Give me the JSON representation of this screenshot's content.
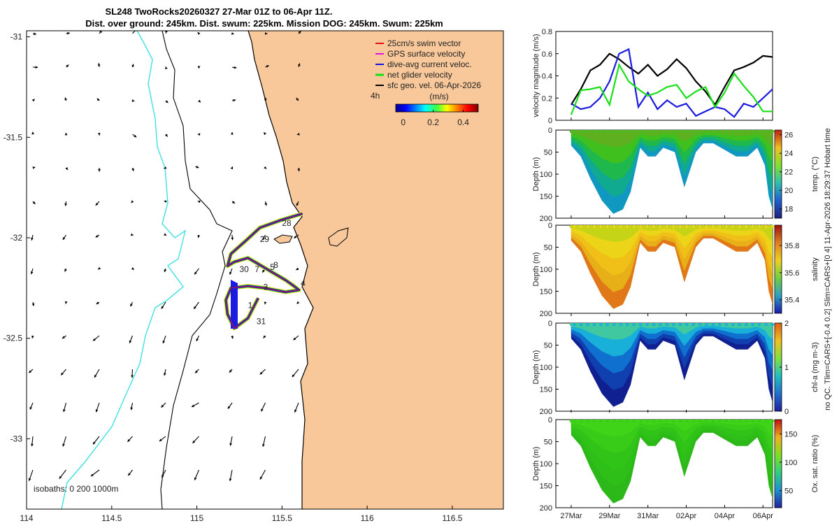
{
  "header": {
    "title_line1": "SL248 TwoRocks20260327 27-Mar 01Z to 06-Apr 11Z.",
    "title_line2": "Dist. over ground: 245km. Dist. swum: 225km. Mission DOG: 245km. Swum: 225km"
  },
  "right_margin_text": "no QC. Tlim=CARS+[-0.4 0.2] Slim=CARS+[0 4] 11-Apr-2026 18:29:37 Hobart time",
  "colors": {
    "land": "#f8c89a",
    "coast": "#000000",
    "isobath_200": "#000000",
    "isobath_1000": "#3fe0e0",
    "green": "#18e018",
    "blue": "#1a1ae0",
    "black": "#000000"
  },
  "chart_data": [
    {
      "id": "map",
      "type": "scatter",
      "title": "glider track map",
      "xlabel": "",
      "ylabel": "",
      "xlim": [
        114,
        116.8
      ],
      "ylim": [
        -33.35,
        -30.97
      ],
      "xticks": [
        114,
        114.5,
        115,
        115.5,
        116,
        116.5
      ],
      "xtick_labels": [
        "114",
        "114.5",
        "115",
        "115.5",
        "116",
        "116.5"
      ],
      "yticks": [
        -31,
        -31.5,
        -32,
        -32.5,
        -33
      ],
      "ytick_labels": [
        "-31",
        "-31.5",
        "-32",
        "-32.5",
        "-33"
      ],
      "legend": {
        "placement": "top-right",
        "items": [
          {
            "label": "25cm/s swim vector",
            "color": "#e01010"
          },
          {
            "label": "GPS surface velocity",
            "color": "#e010e0"
          },
          {
            "label": "dive-avg current veloc.",
            "color": "#1010e0"
          },
          {
            "label": "net glider velocity",
            "color": "#10e010"
          },
          {
            "label": "sfc geo. vel. 06-Apr-2026",
            "color": "#000000"
          }
        ]
      },
      "scale_label": "4h",
      "colorbar": {
        "label": "(m/s)",
        "ticks": [
          "0",
          "0.2",
          "0.4"
        ],
        "range": [
          -0.05,
          0.5
        ]
      },
      "isobath_text": "isobaths: 0  200  1000m",
      "day_labels": [
        {
          "text": "28",
          "lon": 115.5,
          "lat": -31.94
        },
        {
          "text": "29",
          "lon": 115.37,
          "lat": -32.02
        },
        {
          "text": "30",
          "lon": 115.25,
          "lat": -32.17
        },
        {
          "text": "7",
          "lon": 115.34,
          "lat": -32.17
        },
        {
          "text": "5",
          "lon": 115.43,
          "lat": -32.16
        },
        {
          "text": "8",
          "lon": 115.45,
          "lat": -32.15
        },
        {
          "text": "3",
          "lon": 115.39,
          "lat": -32.26
        },
        {
          "text": "4",
          "lon": 115.61,
          "lat": -32.24
        },
        {
          "text": "1",
          "lon": 115.3,
          "lat": -32.35
        },
        {
          "text": "31",
          "lon": 115.35,
          "lat": -32.43
        }
      ],
      "track": {
        "lon": [
          115.62,
          115.5,
          115.37,
          115.28,
          115.2,
          115.18,
          115.22,
          115.3,
          115.36,
          115.44,
          115.52,
          115.57,
          115.6,
          115.52,
          115.4,
          115.3,
          115.2,
          115.17,
          115.18,
          115.22,
          115.3,
          115.36
        ],
        "lat": [
          -31.88,
          -31.91,
          -31.95,
          -32.02,
          -32.08,
          -32.14,
          -32.12,
          -32.1,
          -32.13,
          -32.17,
          -32.21,
          -32.24,
          -32.26,
          -32.27,
          -32.25,
          -32.24,
          -32.25,
          -32.31,
          -32.38,
          -32.45,
          -32.4,
          -32.3
        ]
      },
      "vectors_u": [
        0.15,
        -0.03,
        -0.04,
        -0.02
      ],
      "vectors_v": [
        0.05,
        -0.25,
        -0.35,
        -0.2
      ]
    },
    {
      "id": "velocity",
      "type": "line",
      "ylabel": "velocity magnitude (m/s)",
      "ylim": [
        0,
        0.8
      ],
      "yticks": [
        "0",
        "0.2",
        "0.4",
        "0.6",
        "0.8"
      ],
      "xlim": [
        26.2,
        37.5
      ],
      "x": [
        27,
        27.5,
        28,
        28.5,
        29,
        29.5,
        30,
        30.5,
        31,
        31.5,
        32,
        32.5,
        33,
        33.5,
        34,
        34.5,
        35,
        35.5,
        36,
        36.5,
        37,
        37.5
      ],
      "series": [
        {
          "name": "black",
          "color": "#000000",
          "values": [
            0.14,
            0.28,
            0.45,
            0.5,
            0.6,
            0.55,
            0.48,
            0.42,
            0.5,
            0.4,
            0.46,
            0.55,
            0.47,
            0.35,
            0.26,
            0.14,
            0.3,
            0.45,
            0.48,
            0.52,
            0.58,
            0.57
          ]
        },
        {
          "name": "blue",
          "color": "#1a1ae0",
          "values": [
            0.15,
            0.1,
            0.12,
            0.2,
            0.35,
            0.6,
            0.64,
            0.12,
            0.25,
            0.1,
            0.18,
            0.12,
            0.15,
            0.04,
            0.08,
            0.12,
            0.1,
            0.03,
            0.15,
            0.12,
            0.2,
            0.28
          ]
        },
        {
          "name": "green",
          "color": "#18e018",
          "values": [
            0.05,
            0.27,
            0.28,
            0.3,
            0.14,
            0.5,
            0.35,
            0.28,
            0.22,
            0.25,
            0.3,
            0.32,
            0.2,
            0.26,
            0.3,
            0.12,
            0.25,
            0.42,
            0.31,
            0.21,
            0.08,
            0.08
          ]
        }
      ]
    },
    {
      "id": "temp",
      "type": "heatmap",
      "ylabel": "Depth (m)",
      "clabel": "temp. (°C)",
      "yticks": [
        "0",
        "50",
        "100",
        "150",
        "200"
      ],
      "cticks": [
        "18",
        "20",
        "22",
        "24",
        "26"
      ],
      "crange": [
        17,
        26.5
      ],
      "colors": [
        "#5fb020",
        "#3fc01e",
        "#1fb84c",
        "#10aa90",
        "#1098c0"
      ],
      "levels": [
        21.5,
        22,
        21.2,
        20.5,
        19.5
      ]
    },
    {
      "id": "salinity",
      "type": "heatmap",
      "ylabel": "Depth (m)",
      "clabel": "salinity",
      "yticks": [
        "0",
        "50",
        "100",
        "150",
        "200"
      ],
      "cticks": [
        "35.4",
        "35.6",
        "35.8"
      ],
      "crange": [
        35.3,
        35.95
      ],
      "colors": [
        "#c6d418",
        "#ecd418",
        "#f0c018",
        "#e8b018",
        "#e07818"
      ],
      "levels": [
        35.65,
        35.7,
        35.72,
        35.75,
        35.8
      ]
    },
    {
      "id": "chla",
      "type": "heatmap",
      "ylabel": "Depth (m)",
      "clabel": "chl-a (mg m-3)",
      "yticks": [
        "0",
        "50",
        "100",
        "150",
        "200"
      ],
      "cticks": [
        "0",
        "1",
        "2"
      ],
      "crange": [
        0,
        2
      ],
      "colors": [
        "#40c8a0",
        "#18b0d8",
        "#1070d0",
        "#1040b0",
        "#102090"
      ],
      "levels": [
        0.9,
        0.7,
        0.5,
        0.35,
        0.2
      ]
    },
    {
      "id": "oxygen",
      "type": "heatmap",
      "ylabel": "Depth (m)",
      "clabel": "Ox. sat. ratio (%)",
      "yticks": [
        "0",
        "50",
        "100",
        "150",
        "200"
      ],
      "cticks": [
        "50",
        "100",
        "150"
      ],
      "crange": [
        20,
        175
      ],
      "colors": [
        "#40d418",
        "#38cc18",
        "#30c418",
        "#2ec018",
        "#2cb818"
      ],
      "levels": [
        105,
        104,
        102,
        100,
        98
      ]
    }
  ],
  "time_axis": {
    "ticks": [
      27,
      29,
      31,
      33,
      35,
      37
    ],
    "labels": [
      "27Mar",
      "29Mar",
      "31Mar",
      "02Apr",
      "04Apr",
      "06Apr"
    ]
  },
  "section_profile": {
    "x": [
      27,
      27.5,
      28,
      28.6,
      29.2,
      29.7,
      30.1,
      30.6,
      31,
      31.4,
      31.8,
      32.4,
      32.9,
      33.5,
      33.9,
      34.4,
      35,
      35.6,
      36.2,
      36.7,
      37.1,
      37.3,
      37.5
    ],
    "maxdepth": [
      35,
      60,
      110,
      160,
      190,
      180,
      140,
      40,
      60,
      60,
      40,
      50,
      130,
      50,
      30,
      30,
      45,
      60,
      60,
      40,
      80,
      150,
      180
    ]
  }
}
